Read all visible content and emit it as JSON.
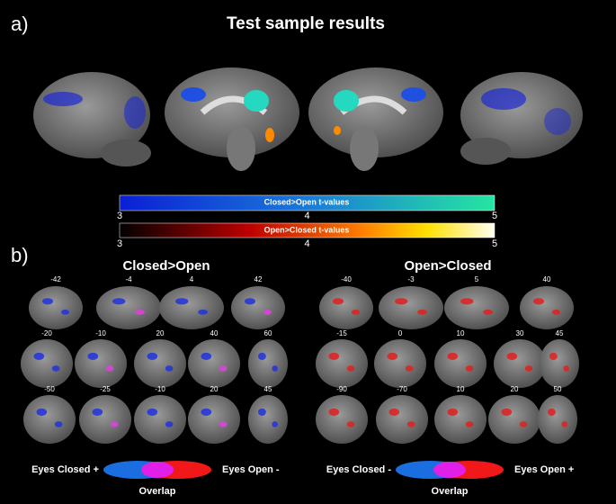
{
  "panel_a": {
    "label": "a)",
    "title": "Test sample results"
  },
  "colorbars": [
    {
      "label": "Closed>Open t-values",
      "ticks": [
        3,
        4,
        5
      ]
    },
    {
      "label": "Open>Closed t-values",
      "ticks": [
        3,
        4,
        5
      ]
    }
  ],
  "panel_b": {
    "label": "b)",
    "groups": [
      {
        "title": "Closed>Open",
        "rows": [
          [
            -42,
            -4,
            4,
            42
          ],
          [
            -20,
            -10,
            20,
            40,
            60
          ],
          [
            -50,
            -25,
            -10,
            20,
            45
          ]
        ],
        "legend": {
          "left": "Eyes Closed +",
          "right": "Eyes Open -",
          "overlap": "Overlap"
        }
      },
      {
        "title": "Open>Closed",
        "rows": [
          [
            -40,
            -3,
            5,
            40
          ],
          [
            -15,
            0,
            10,
            30,
            45
          ],
          [
            -90,
            -70,
            10,
            20,
            50
          ]
        ],
        "legend": {
          "left": "Eyes Closed -",
          "right": "Eyes Open +",
          "overlap": "Overlap"
        }
      }
    ]
  }
}
